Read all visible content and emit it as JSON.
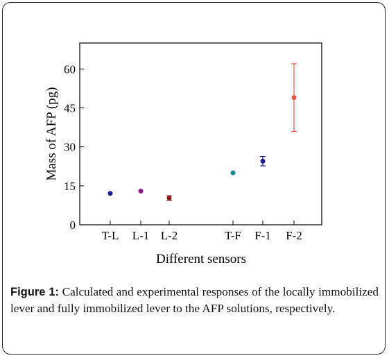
{
  "chart_data": {
    "type": "scatter",
    "xlabel": "Different sensors",
    "ylabel": "Mass of AFP (pg)",
    "categories": [
      "T-L",
      "L-1",
      "L-2",
      "T-F",
      "F-1",
      "F-2"
    ],
    "ylim": [
      0,
      70
    ],
    "yticks": [
      "0",
      "15",
      "30",
      "45",
      "60"
    ],
    "grid": false,
    "points": [
      {
        "category": "T-L",
        "y": 12.1,
        "err": 0,
        "color": "#1f1f8a"
      },
      {
        "category": "L-1",
        "y": 13.0,
        "err": 0,
        "color": "#8b1a8b"
      },
      {
        "category": "L-2",
        "y": 10.3,
        "err": 0.9,
        "color": "#8b1a1a"
      },
      {
        "category": "T-F",
        "y": 20.0,
        "err": 0,
        "color": "#1a8b8b"
      },
      {
        "category": "F-1",
        "y": 24.5,
        "err": 1.8,
        "color": "#1f1f8a"
      },
      {
        "category": "F-2",
        "y": 49.0,
        "err": 13.0,
        "color": "#e8594a"
      }
    ]
  },
  "caption": {
    "label": "Figure 1:",
    "text": " Calculated and experimental responses of the locally immobilized lever and fully immobilized lever to the AFP solutions, respectively."
  }
}
